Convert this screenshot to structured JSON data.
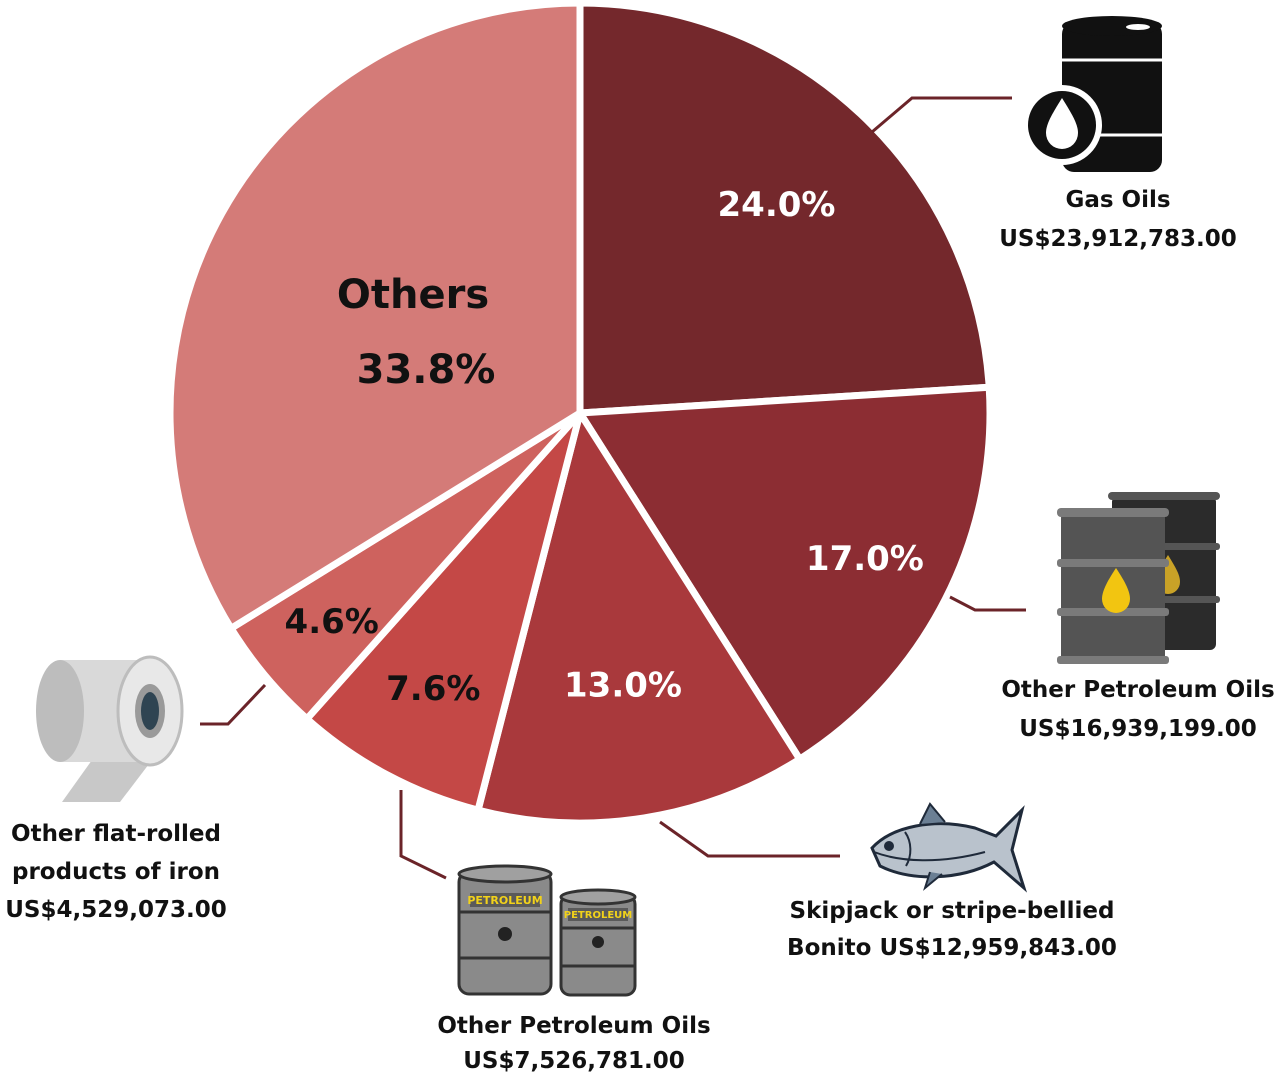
{
  "chart_data": {
    "type": "pie",
    "title": "",
    "start": "12 o'clock, clockwise",
    "slices": [
      {
        "label": "Gas Oils",
        "value_text": "US$23,912,783.00",
        "value": 23912783.0,
        "percent": 24.0,
        "percent_text": "24.0%",
        "color": "#74282c",
        "text_color": "#ffffff",
        "icon": "oil-barrel-drop-icon"
      },
      {
        "label": "Other Petroleum Oils",
        "value_text": "US$16,939,199.00",
        "value": 16939199.0,
        "percent": 17.0,
        "percent_text": "17.0%",
        "color": "#8c2d33",
        "text_color": "#ffffff",
        "icon": "oil-barrels-icon"
      },
      {
        "label": "Skipjack or stripe-bellied Bonito",
        "value_text": "US$12,959,843.00",
        "value": 12959843.0,
        "percent": 13.0,
        "percent_text": "13.0%",
        "color": "#a9393c",
        "text_color": "#ffffff",
        "icon": "tuna-fish-icon"
      },
      {
        "label": "Other Petroleum Oils",
        "value_text": "US$7,526,781.00",
        "value": 7526781.0,
        "percent": 7.6,
        "percent_text": "7.6%",
        "color": "#c44846",
        "text_color": "#111111",
        "icon": "petroleum-drums-icon"
      },
      {
        "label": "Other flat-rolled products of iron",
        "value_text": "US$4,529,073.00",
        "value": 4529073.0,
        "percent": 4.6,
        "percent_text": "4.6%",
        "color": "#ce625e",
        "text_color": "#111111",
        "icon": "steel-coil-icon"
      },
      {
        "label": "Others",
        "value_text": "",
        "percent": 33.8,
        "percent_text": "33.8%",
        "color": "#d47b78",
        "text_color": "#111111",
        "icon": ""
      }
    ]
  },
  "labels": {
    "gas_oils_line1": "Gas Oils",
    "gas_oils_line2": "US$23,912,783.00",
    "pet1_line1": "Other Petroleum Oils",
    "pet1_line2": "US$16,939,199.00",
    "bonito_line1": "Skipjack or stripe-bellied",
    "bonito_line2": "Bonito US$12,959,843.00",
    "pet2_line1": "Other Petroleum Oils",
    "pet2_line2": "US$7,526,781.00",
    "iron_line1": "Other flat-rolled",
    "iron_line2": "products of iron",
    "iron_line3": "US$4,529,073.00",
    "others_name": "Others"
  },
  "colors": {
    "leader": "#6b2429",
    "separator": "#ffffff"
  }
}
